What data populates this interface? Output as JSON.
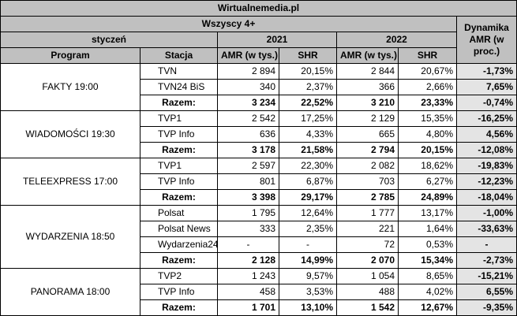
{
  "site": "Wirtualnemedia.pl",
  "audience": "Wszyscy 4+",
  "period": "styczeń",
  "years": [
    "2021",
    "2022"
  ],
  "dynamics_header": "Dynamika AMR (w proc.)",
  "col_program": "Program",
  "col_station": "Stacja",
  "col_amr": "AMR (w tys.)",
  "col_shr": "SHR",
  "total_label": "Razem:",
  "programs": [
    {
      "name": "FAKTY 19:00",
      "rows": [
        {
          "station": "TVN",
          "amr2021": "2 894",
          "shr2021": "20,15%",
          "amr2022": "2 844",
          "shr2022": "20,67%",
          "dyn": "-1,73%"
        },
        {
          "station": "TVN24 BiS",
          "amr2021": "340",
          "shr2021": "2,37%",
          "amr2022": "366",
          "shr2022": "2,66%",
          "dyn": "7,65%"
        }
      ],
      "total": {
        "amr2021": "3 234",
        "shr2021": "22,52%",
        "amr2022": "3 210",
        "shr2022": "23,33%",
        "dyn": "-0,74%"
      }
    },
    {
      "name": "WIADOMOŚCI 19:30",
      "rows": [
        {
          "station": "TVP1",
          "amr2021": "2 542",
          "shr2021": "17,25%",
          "amr2022": "2 129",
          "shr2022": "15,35%",
          "dyn": "-16,25%"
        },
        {
          "station": "TVP Info",
          "amr2021": "636",
          "shr2021": "4,33%",
          "amr2022": "665",
          "shr2022": "4,80%",
          "dyn": "4,56%"
        }
      ],
      "total": {
        "amr2021": "3 178",
        "shr2021": "21,58%",
        "amr2022": "2 794",
        "shr2022": "20,15%",
        "dyn": "-12,08%"
      }
    },
    {
      "name": "TELEEXPRESS 17:00",
      "rows": [
        {
          "station": "TVP1",
          "amr2021": "2 597",
          "shr2021": "22,30%",
          "amr2022": "2 082",
          "shr2022": "18,62%",
          "dyn": "-19,83%"
        },
        {
          "station": "TVP Info",
          "amr2021": "801",
          "shr2021": "6,87%",
          "amr2022": "703",
          "shr2022": "6,27%",
          "dyn": "-12,23%"
        }
      ],
      "total": {
        "amr2021": "3 398",
        "shr2021": "29,17%",
        "amr2022": "2 785",
        "shr2022": "24,89%",
        "dyn": "-18,04%"
      }
    },
    {
      "name": "WYDARZENIA 18:50",
      "rows": [
        {
          "station": "Polsat",
          "amr2021": "1 795",
          "shr2021": "12,64%",
          "amr2022": "1 777",
          "shr2022": "13,17%",
          "dyn": "-1,00%"
        },
        {
          "station": "Polsat News",
          "amr2021": "333",
          "shr2021": "2,35%",
          "amr2022": "221",
          "shr2022": "1,64%",
          "dyn": "-33,63%"
        },
        {
          "station": "Wydarzenia24",
          "amr2021": "-",
          "shr2021": "-",
          "amr2022": "72",
          "shr2022": "0,53%",
          "dyn": "-"
        }
      ],
      "total": {
        "amr2021": "2 128",
        "shr2021": "14,99%",
        "amr2022": "2 070",
        "shr2022": "15,34%",
        "dyn": "-2,73%"
      }
    },
    {
      "name": "PANORAMA 18:00",
      "rows": [
        {
          "station": "TVP2",
          "amr2021": "1 243",
          "shr2021": "9,57%",
          "amr2022": "1 054",
          "shr2022": "8,65%",
          "dyn": "-15,21%"
        },
        {
          "station": "TVP Info",
          "amr2021": "458",
          "shr2021": "3,53%",
          "amr2022": "488",
          "shr2022": "4,02%",
          "dyn": "6,55%"
        }
      ],
      "total": {
        "amr2021": "1 701",
        "shr2021": "13,10%",
        "amr2022": "1 542",
        "shr2022": "12,67%",
        "dyn": "-9,35%"
      }
    }
  ]
}
